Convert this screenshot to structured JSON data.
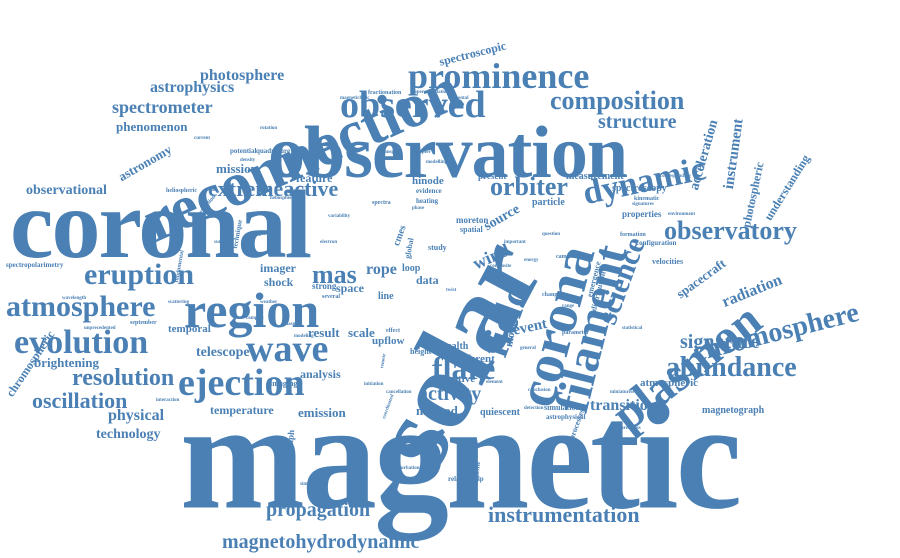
{
  "cloud": {
    "color": "#4a80b4",
    "words": {
      "magnetic": "magnetic",
      "coronal": "coronal",
      "solar": "solar",
      "observation": "observation",
      "reconnection": "reconnection",
      "region": "region",
      "corona": "corona",
      "filament": "filament",
      "plasmon": "plasmon",
      "field": "field",
      "prominence": "prominence",
      "observed": "observed",
      "ejection": "ejection",
      "wave": "wave",
      "evolution": "evolution",
      "eruption": "eruption",
      "atmosphere": "atmosphere",
      "flare": "flare",
      "chromosphere": "chromosphere",
      "abundance": "abundance",
      "dynamic": "dynamic",
      "observatory": "observatory",
      "composition": "composition",
      "extremeactive": "extremeactive",
      "science": "science",
      "instrumentation": "instrumentation",
      "magnetohydrodynamic": "magnetohydrodynamic",
      "propagation": "propagation",
      "orbiter": "orbiter",
      "structure": "structure",
      "signature": "signature",
      "mas": "mas",
      "resolution": "resolution",
      "oscillation": "oscillation",
      "activity": "activity",
      "transition": "transition",
      "spectrometer": "spectrometer",
      "astrophysics": "astrophysics",
      "photosphere": "photosphere",
      "observational": "observational",
      "phenomenon": "phenomenon",
      "astronomy": "astronomy",
      "physical": "physical",
      "technology": "technology",
      "brightening": "brightening",
      "chromospheric": "chromospheric",
      "spectroscopic": "spectroscopic",
      "acceleration": "acceleration",
      "instrument": "instrument",
      "understanding": "understanding",
      "photospheric": "photospheric",
      "radiation": "radiation",
      "spacecraft": "spacecraft",
      "mission": "mission",
      "feature": "feature",
      "hinode": "hinode",
      "measurement": "measurement",
      "spectroscopy": "spectroscopy",
      "particle": "particle",
      "present": "present",
      "wind": "wind",
      "source": "source",
      "event": "event",
      "imager": "imager",
      "shock": "shock",
      "rope": "rope",
      "space": "space",
      "strong": "strong",
      "line": "line",
      "loop": "loop",
      "data": "data",
      "result": "result",
      "scale": "scale",
      "upflow": "upflow",
      "height": "height",
      "telescope": "telescope",
      "analysis": "analysis",
      "temperature": "temperature",
      "emission": "emission",
      "method": "method",
      "quiescent": "quiescent",
      "atmospheric": "atmospheric",
      "magnetograph": "magnetograph",
      "temporal": "temporal",
      "imaging": "imaging",
      "stealth": "stealth",
      "different": "different",
      "eruptive": "eruptive",
      "model": "model",
      "cmes": "cmes",
      "moreton": "moreton",
      "spatial": "spatial",
      "study": "study",
      "global": "global",
      "properties": "properties",
      "configuration": "configuration",
      "velocities": "velocities",
      "distribution": "distribution",
      "emergence": "emergence",
      "simulation": "simulation",
      "astrophysical": "astrophysical",
      "processes": "processes",
      "spectrograph": "spectrograph",
      "mechanism": "mechanism",
      "relationship": "relationship",
      "spectropolarimetry": "spectropolarimetry",
      "heliospheric": "heliospheric",
      "fundamental": "fundamental",
      "quadrature": "quadrature",
      "potential": "potential",
      "perihelion": "perihelion",
      "technique": "technique",
      "magnetichelic": "magnetichelic",
      "fractionation": "fractionation",
      "supergranulation": "supergranulation",
      "unprecedented": "unprecedented",
      "september": "september",
      "wavelength": "wavelength",
      "evidence": "evidence",
      "heating": "heating",
      "formation": "formation",
      "change": "change",
      "parameter": "parameter",
      "initiation": "initiation",
      "general": "general",
      "effect": "effect",
      "twist": "twist",
      "environment": "environment",
      "kinematic": "kinematic",
      "signatures": "signatures",
      "corresponding": "corresponding",
      "campfire": "campfire",
      "statistical": "statistical",
      "composite": "composite",
      "spectra": "spectra",
      "several": "several",
      "element": "element",
      "perturbation": "perturbation",
      "simultaneous": "simultaneous",
      "coordinated": "coordinated",
      "detection": "detection",
      "conclusion": "conclusion",
      "miniaturised": "miniaturised",
      "range": "range",
      "magnetic_field": "magnetic field",
      "energy": "energy",
      "question": "question",
      "remote": "remote",
      "plasma": "plasma",
      "complex": "complex",
      "modeling": "modeling",
      "density": "density",
      "phase": "phase",
      "variability": "variability",
      "cancellation": "cancellation",
      "important": "important",
      "doppler": "doppler",
      "merger": "merger",
      "weather": "weather",
      "modelling": "modelling",
      "current": "current",
      "rotation": "rotation",
      "sunspot": "sunspot",
      "surface": "surface",
      "measurements": "measurements",
      "interaction": "interaction",
      "scattering": "scattering",
      "electron": "electron",
      "heliosphere": "heliosphere",
      "elemental": "elemental"
    }
  }
}
